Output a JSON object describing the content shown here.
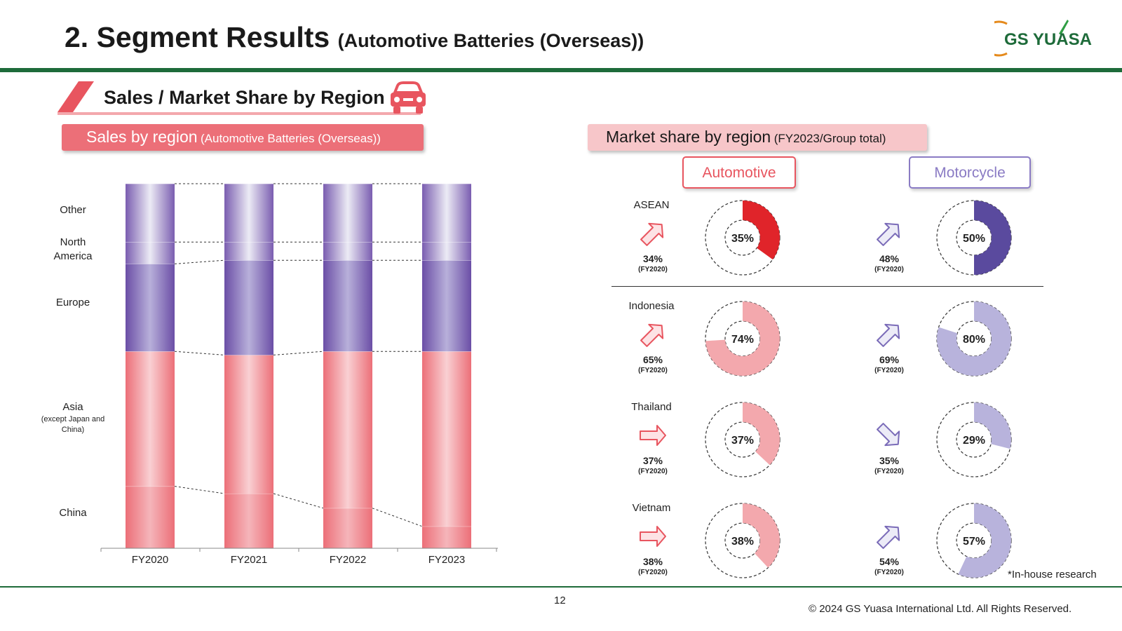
{
  "header": {
    "title": "2. Segment Results",
    "subtitle": "(Automotive Batteries (Overseas))",
    "logo_text": "GS YUASA"
  },
  "section": {
    "title": "Sales / Market Share by Region",
    "icon": "car-icon"
  },
  "sales_panel": {
    "title": "Sales by region",
    "subtitle": "(Automotive Batteries (Overseas))"
  },
  "share_panel": {
    "title": "Market share by region",
    "subtitle": "(FY2023/Group total)",
    "automotive_label": "Automotive",
    "motorcycle_label": "Motorcycle"
  },
  "region_labels": {
    "other": "Other",
    "north_america_1": "North",
    "north_america_2": "America",
    "europe": "Europe",
    "asia": "Asia",
    "asia_note_1": "(except Japan and",
    "asia_note_2": "China)",
    "china": "China"
  },
  "colors": {
    "pink": "#ec6f78",
    "purple": "#6b4ea6",
    "lavender": "#b8b0da",
    "red": "#e0242a",
    "green": "#1e6b3a"
  },
  "chart_data": {
    "type": "bar",
    "stacked": true,
    "normalized": true,
    "categories": [
      "FY2020",
      "FY2021",
      "FY2022",
      "FY2023"
    ],
    "series": [
      {
        "name": "China",
        "values": [
          17,
          15,
          11,
          6
        ]
      },
      {
        "name": "Asia (except Japan and China)",
        "values": [
          37,
          38,
          43,
          48
        ]
      },
      {
        "name": "Europe",
        "values": [
          24,
          26,
          25,
          25
        ]
      },
      {
        "name": "North America",
        "values": [
          6,
          5,
          5,
          5
        ]
      },
      {
        "name": "Other",
        "values": [
          16,
          16,
          16,
          16
        ]
      }
    ],
    "ylim": [
      0,
      100
    ]
  },
  "market_share": [
    {
      "country": "ASEAN",
      "auto_value": 35,
      "auto_label": "35%",
      "auto_prev": "34%",
      "auto_trend": "up",
      "auto_color": "#e0242a",
      "moto_value": 50,
      "moto_label": "50%",
      "moto_prev": "48%",
      "moto_trend": "up",
      "moto_color": "#5a4a9e",
      "fy": "(FY2020)"
    },
    {
      "country": "Indonesia",
      "auto_value": 74,
      "auto_label": "74%",
      "auto_prev": "65%",
      "auto_trend": "up",
      "auto_color": "#f3a8ad",
      "moto_value": 80,
      "moto_label": "80%",
      "moto_prev": "69%",
      "moto_trend": "up",
      "moto_color": "#b8b3dc",
      "fy": "(FY2020)"
    },
    {
      "country": "Thailand",
      "auto_value": 37,
      "auto_label": "37%",
      "auto_prev": "37%",
      "auto_trend": "flat",
      "auto_color": "#f3a8ad",
      "moto_value": 29,
      "moto_label": "29%",
      "moto_prev": "35%",
      "moto_trend": "down",
      "moto_color": "#b8b3dc",
      "fy": "(FY2020)"
    },
    {
      "country": "Vietnam",
      "auto_value": 38,
      "auto_label": "38%",
      "auto_prev": "38%",
      "auto_trend": "flat",
      "auto_color": "#f3a8ad",
      "moto_value": 57,
      "moto_label": "57%",
      "moto_prev": "54%",
      "moto_trend": "up",
      "moto_color": "#b8b3dc",
      "fy": "(FY2020)"
    }
  ],
  "footer": {
    "note": "*In-house research",
    "page_number": "12",
    "copyright": "© 2024 GS Yuasa International Ltd. All Rights Reserved."
  }
}
